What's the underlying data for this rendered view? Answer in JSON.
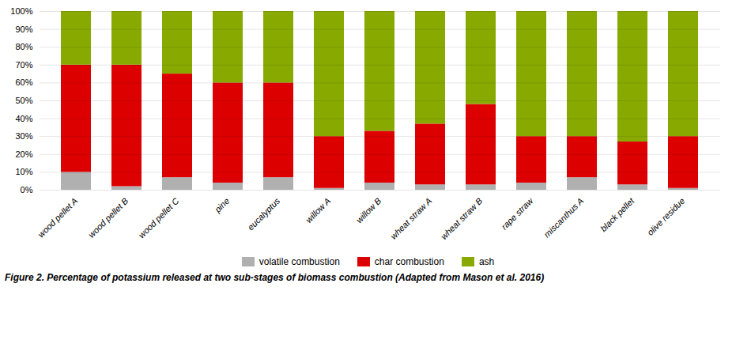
{
  "chart_data": {
    "type": "bar",
    "stacked": true,
    "categories": [
      "wood pellet A",
      "wood pellet B",
      "wood pellet C",
      "pine",
      "eucalyptus",
      "willow A",
      "willow B",
      "wheat straw A",
      "wheat straw B",
      "rape straw",
      "miscanthus A",
      "black pellet",
      "olive residue"
    ],
    "series": [
      {
        "name": "volatile combustion",
        "color": "#b0b0b0",
        "values": [
          10,
          2,
          7,
          4,
          7,
          1,
          4,
          3,
          3,
          4,
          7,
          3,
          1
        ]
      },
      {
        "name": "char combustion",
        "color": "#dd0000",
        "values": [
          60,
          68,
          58,
          56,
          53,
          29,
          29,
          34,
          45,
          26,
          23,
          24,
          29
        ]
      },
      {
        "name": "ash",
        "color": "#88aa00",
        "values": [
          30,
          30,
          35,
          40,
          40,
          70,
          67,
          63,
          52,
          70,
          70,
          73,
          70
        ]
      }
    ],
    "ylim": [
      0,
      100
    ],
    "yticks": [
      {
        "value": 0,
        "label": "0%"
      },
      {
        "value": 10,
        "label": "10%"
      },
      {
        "value": 20,
        "label": "20%"
      },
      {
        "value": 30,
        "label": "30%"
      },
      {
        "value": 40,
        "label": "40%"
      },
      {
        "value": 50,
        "label": "50%"
      },
      {
        "value": 60,
        "label": "60%"
      },
      {
        "value": 70,
        "label": "70%"
      },
      {
        "value": 80,
        "label": "80%"
      },
      {
        "value": 90,
        "label": "90%"
      },
      {
        "value": 100,
        "label": "100%"
      }
    ],
    "grid": true,
    "legend": "bottom",
    "caption": "Figure 2. Percentage of potassium released at two sub-stages of biomass combustion (Adapted from Mason et al. 2016)"
  }
}
